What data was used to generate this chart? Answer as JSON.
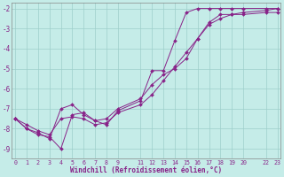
{
  "xlabel": "Windchill (Refroidissement éolien,°C)",
  "bg_color": "#c5ece8",
  "grid_color": "#9ececa",
  "line_color": "#882288",
  "xlim": [
    -0.3,
    23.3
  ],
  "ylim": [
    -9.5,
    -1.7
  ],
  "yticks": [
    -9,
    -8,
    -7,
    -6,
    -5,
    -4,
    -3,
    -2
  ],
  "xticks": [
    0,
    1,
    2,
    3,
    4,
    5,
    6,
    7,
    8,
    9,
    11,
    12,
    13,
    14,
    15,
    16,
    17,
    18,
    19,
    20,
    22,
    23
  ],
  "line1_x": [
    0,
    1,
    2,
    3,
    4,
    5,
    6,
    7,
    8,
    9,
    11,
    12,
    13,
    14,
    15,
    16,
    17,
    18,
    19,
    20,
    22,
    23
  ],
  "line1_y": [
    -7.5,
    -8.0,
    -8.3,
    -8.4,
    -9.0,
    -7.3,
    -7.2,
    -7.6,
    -7.8,
    -7.1,
    -6.6,
    -5.1,
    -5.1,
    -3.6,
    -2.2,
    -2.0,
    -2.0,
    -2.0,
    -2.0,
    -2.0,
    -2.0,
    -2.0
  ],
  "line2_x": [
    0,
    1,
    2,
    3,
    4,
    5,
    6,
    7,
    8,
    9,
    11,
    12,
    13,
    14,
    15,
    16,
    17,
    18,
    19,
    20,
    22,
    23
  ],
  "line2_y": [
    -7.5,
    -8.0,
    -8.2,
    -8.5,
    -7.0,
    -6.8,
    -7.3,
    -7.6,
    -7.5,
    -7.0,
    -6.5,
    -5.8,
    -5.3,
    -5.0,
    -4.5,
    -3.5,
    -2.7,
    -2.3,
    -2.3,
    -2.3,
    -2.2,
    -2.2
  ],
  "line3_x": [
    0,
    1,
    2,
    3,
    4,
    5,
    6,
    7,
    8,
    9,
    11,
    12,
    13,
    14,
    15,
    16,
    17,
    18,
    19,
    20,
    22,
    23
  ],
  "line3_y": [
    -7.5,
    -7.8,
    -8.1,
    -8.3,
    -7.5,
    -7.4,
    -7.5,
    -7.8,
    -7.7,
    -7.2,
    -6.8,
    -6.3,
    -5.6,
    -4.9,
    -4.2,
    -3.5,
    -2.8,
    -2.5,
    -2.3,
    -2.2,
    -2.1,
    -2.0
  ]
}
